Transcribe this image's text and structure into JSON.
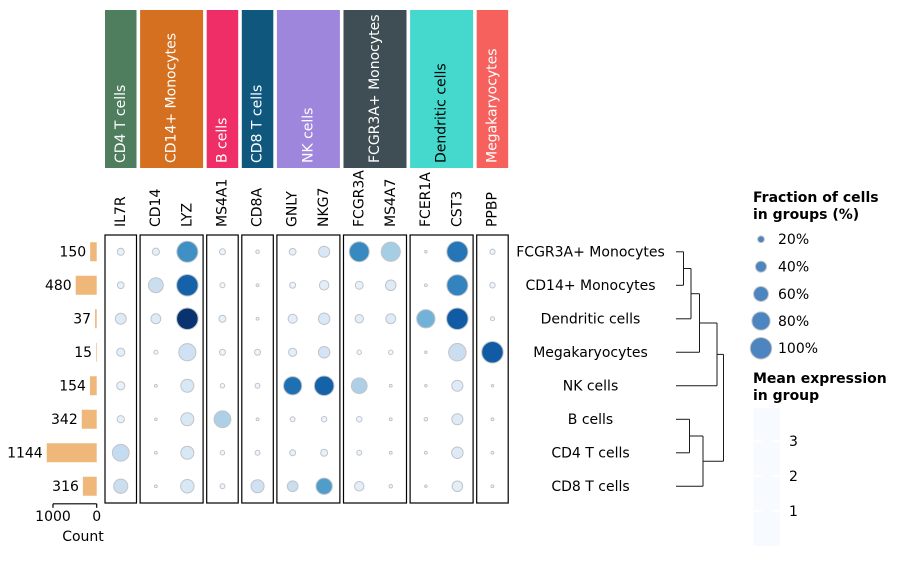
{
  "figure": {
    "background": "#ffffff",
    "dot_edge_color": "#c0c4ca",
    "bar_color": "#f0b77a",
    "legend_dot_color": "#4d85c0",
    "box_border_color": "#000000",
    "dendrogram_color": "#1a1a1a"
  },
  "top_groups": [
    {
      "label": "CD4 T cells",
      "color": "#4e7e5d",
      "text_color": "#ffffff",
      "n_genes": 1
    },
    {
      "label": "CD14+ Monocytes",
      "color": "#d4701f",
      "text_color": "#ffffff",
      "n_genes": 2
    },
    {
      "label": "B cells",
      "color": "#ef2d67",
      "text_color": "#ffffff",
      "n_genes": 1
    },
    {
      "label": "CD8 T cells",
      "color": "#10577e",
      "text_color": "#ffffff",
      "n_genes": 1
    },
    {
      "label": "NK cells",
      "color": "#9f86dd",
      "text_color": "#ffffff",
      "n_genes": 2
    },
    {
      "label": "FCGR3A+ Monocytes",
      "color": "#3f4e54",
      "text_color": "#ffffff",
      "n_genes": 2
    },
    {
      "label": "Dendritic cells",
      "color": "#45d9ce",
      "text_color": "#000000",
      "n_genes": 2
    },
    {
      "label": "Megakaryocytes",
      "color": "#f7615d",
      "text_color": "#ffffff",
      "n_genes": 1
    }
  ],
  "chart_data": {
    "type": "dotplot",
    "genes": [
      "IL7R",
      "CD14",
      "LYZ",
      "MS4A1",
      "CD8A",
      "GNLY",
      "NKG7",
      "FCGR3A",
      "MS4A7",
      "FCER1A",
      "CST3",
      "PPBP"
    ],
    "rows": [
      "FCGR3A+ Monocytes",
      "CD14+ Monocytes",
      "Dendritic cells",
      "Megakaryocytes",
      "NK cells",
      "B cells",
      "CD4 T cells",
      "CD8 T cells"
    ],
    "fraction": [
      [
        0.21,
        0.22,
        0.97,
        0.17,
        0.08,
        0.2,
        0.4,
        0.9,
        0.85,
        0.05,
        0.97,
        0.14
      ],
      [
        0.2,
        0.6,
        1.0,
        0.13,
        0.06,
        0.17,
        0.32,
        0.25,
        0.37,
        0.06,
        0.97,
        0.15
      ],
      [
        0.39,
        0.34,
        1.0,
        0.21,
        0.06,
        0.3,
        0.42,
        0.27,
        0.34,
        0.8,
        1.0,
        0.1
      ],
      [
        0.26,
        0.1,
        0.73,
        0.17,
        0.17,
        0.26,
        0.42,
        0.11,
        0.11,
        0.05,
        0.75,
        1.0
      ],
      [
        0.26,
        0.06,
        0.5,
        0.11,
        0.13,
        0.8,
        0.88,
        0.65,
        0.06,
        0.05,
        0.4,
        0.05
      ],
      [
        0.22,
        0.05,
        0.5,
        0.71,
        0.06,
        0.13,
        0.15,
        0.15,
        0.06,
        0.08,
        0.4,
        0.06
      ],
      [
        0.71,
        0.06,
        0.5,
        0.11,
        0.13,
        0.17,
        0.21,
        0.13,
        0.06,
        0.06,
        0.42,
        0.06
      ],
      [
        0.56,
        0.06,
        0.52,
        0.13,
        0.5,
        0.38,
        0.68,
        0.32,
        0.08,
        0.05,
        0.37,
        0.06
      ]
    ],
    "mean_expression": [
      [
        0.3,
        0.4,
        2.5,
        0.2,
        0.1,
        0.3,
        0.6,
        2.6,
        1.4,
        0.1,
        2.9,
        0.2
      ],
      [
        0.3,
        0.9,
        3.2,
        0.1,
        0.1,
        0.2,
        0.4,
        0.3,
        0.5,
        0.1,
        2.7,
        0.2
      ],
      [
        0.5,
        0.5,
        3.9,
        0.3,
        0.1,
        0.4,
        0.6,
        0.4,
        0.5,
        1.9,
        3.3,
        0.1
      ],
      [
        0.4,
        0.1,
        0.8,
        0.2,
        0.2,
        0.4,
        0.7,
        0.1,
        0.1,
        0.1,
        0.9,
        3.3
      ],
      [
        0.3,
        0.1,
        0.6,
        0.1,
        0.2,
        3.0,
        3.2,
        1.3,
        0.1,
        0.1,
        0.5,
        0.1
      ],
      [
        0.3,
        0.1,
        0.6,
        1.3,
        0.1,
        0.2,
        0.2,
        0.2,
        0.1,
        0.1,
        0.5,
        0.1
      ],
      [
        1.0,
        0.1,
        0.6,
        0.1,
        0.2,
        0.3,
        0.3,
        0.2,
        0.1,
        0.1,
        0.5,
        0.1
      ],
      [
        0.9,
        0.1,
        0.6,
        0.2,
        0.8,
        0.9,
        2.3,
        0.4,
        0.1,
        0.1,
        0.4,
        0.1
      ]
    ],
    "counts": [
      150,
      480,
      37,
      15,
      154,
      342,
      1144,
      316
    ],
    "count_axis": {
      "ticks": [
        "1000",
        "0"
      ],
      "tick_values": [
        1000,
        0
      ],
      "label": "Count"
    },
    "size_legend": {
      "title_lines": [
        "Fraction of cells",
        "in groups (%)"
      ],
      "labels": [
        "20%",
        "40%",
        "60%",
        "80%",
        "100%"
      ],
      "fractions": [
        0.2,
        0.4,
        0.6,
        0.8,
        1.0
      ]
    },
    "color_legend": {
      "title_lines": [
        "Mean expression",
        "in group"
      ],
      "ticks": [
        "1",
        "2",
        "3"
      ],
      "tick_values": [
        1,
        2,
        3
      ],
      "vmin": 0,
      "vmax": 3.95,
      "colormap": "Blues"
    },
    "dendrogram": {
      "segments": [
        [
          676,
          251.8,
          683.5,
          251.8
        ],
        [
          676,
          285.3,
          683.5,
          285.3
        ],
        [
          683.5,
          251.8,
          683.5,
          285.3
        ],
        [
          683.5,
          268.5,
          691,
          268.5
        ],
        [
          676,
          318.8,
          691,
          318.8
        ],
        [
          691,
          268.5,
          691,
          318.8
        ],
        [
          691,
          293.7,
          699.5,
          293.7
        ],
        [
          676,
          352.3,
          699.5,
          352.3
        ],
        [
          699.5,
          293.7,
          699.5,
          352.3
        ],
        [
          699.5,
          323,
          717,
          323
        ],
        [
          676,
          385.8,
          717,
          385.8
        ],
        [
          717,
          323,
          717,
          385.8
        ],
        [
          676,
          419.3,
          689.5,
          419.3
        ],
        [
          676,
          452.8,
          689.5,
          452.8
        ],
        [
          689.5,
          419.3,
          689.5,
          452.8
        ],
        [
          689.5,
          436,
          703,
          436
        ],
        [
          676,
          486.3,
          703,
          486.3
        ],
        [
          703,
          436,
          703,
          486.3
        ],
        [
          717,
          354.4,
          723.5,
          354.4
        ],
        [
          703,
          461.2,
          723.5,
          461.2
        ],
        [
          723.5,
          354.4,
          723.5,
          461.2
        ]
      ]
    }
  }
}
